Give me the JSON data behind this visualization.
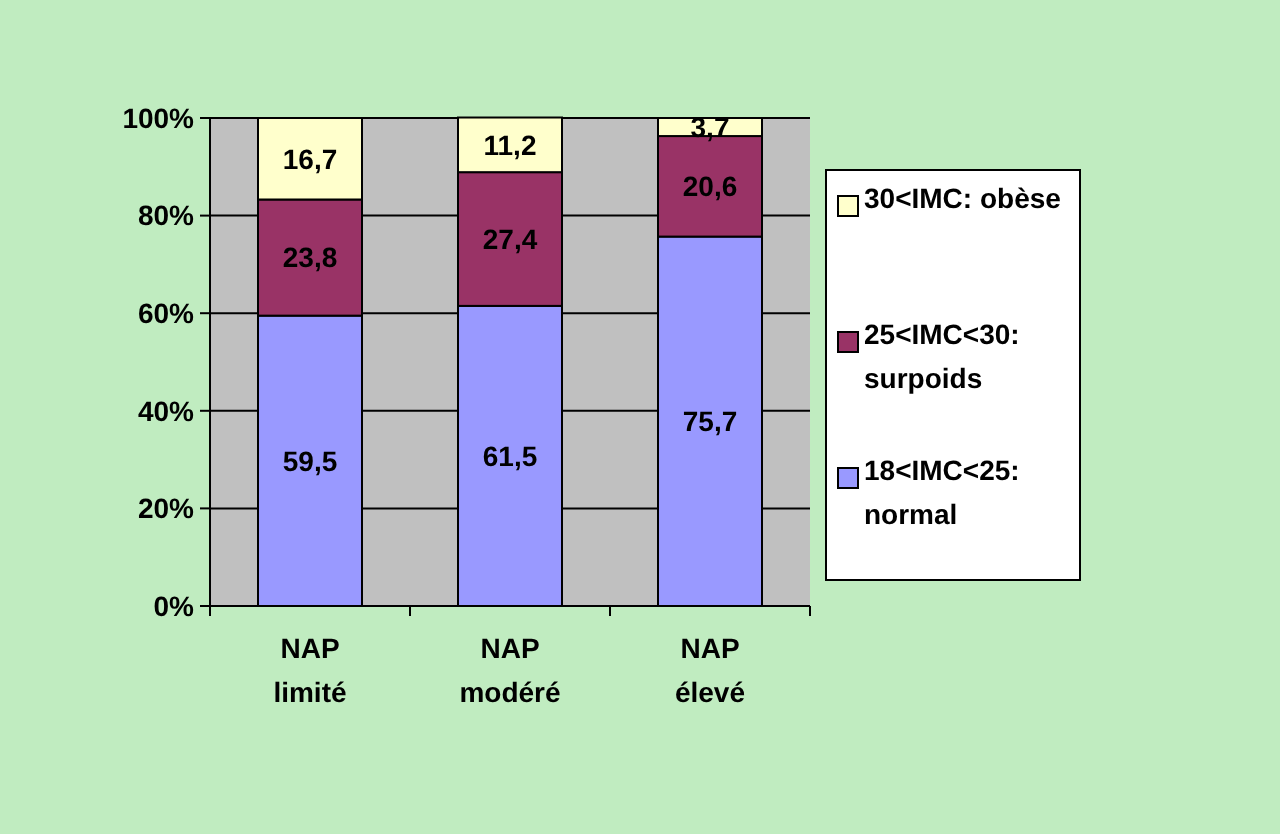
{
  "chart_data": {
    "type": "bar",
    "stacked": true,
    "categories": [
      "NAP limité",
      "NAP modéré",
      "NAP élevé"
    ],
    "series": [
      {
        "name": "18<IMC<25: normal",
        "color": "#9999ff",
        "values": [
          59.5,
          61.5,
          75.7
        ],
        "value_labels": [
          "59,5",
          "61,5",
          "75,7"
        ]
      },
      {
        "name": "25<IMC<30: surpoids",
        "color": "#993366",
        "values": [
          23.8,
          27.4,
          20.6
        ],
        "value_labels": [
          "23,8",
          "27,4",
          "20,6"
        ]
      },
      {
        "name": "30<IMC: obèse",
        "color": "#ffffcc",
        "values": [
          16.7,
          11.2,
          3.7
        ],
        "value_labels": [
          "16,7",
          "11,2",
          "3,7"
        ]
      }
    ],
    "ylim": [
      0,
      100
    ],
    "yticks": [
      {
        "value": 0,
        "label": "0%"
      },
      {
        "value": 20,
        "label": "20%"
      },
      {
        "value": 40,
        "label": "40%"
      },
      {
        "value": 60,
        "label": "60%"
      },
      {
        "value": 80,
        "label": "80%"
      },
      {
        "value": 100,
        "label": "100%"
      }
    ],
    "grid": "y",
    "legend": "right"
  }
}
